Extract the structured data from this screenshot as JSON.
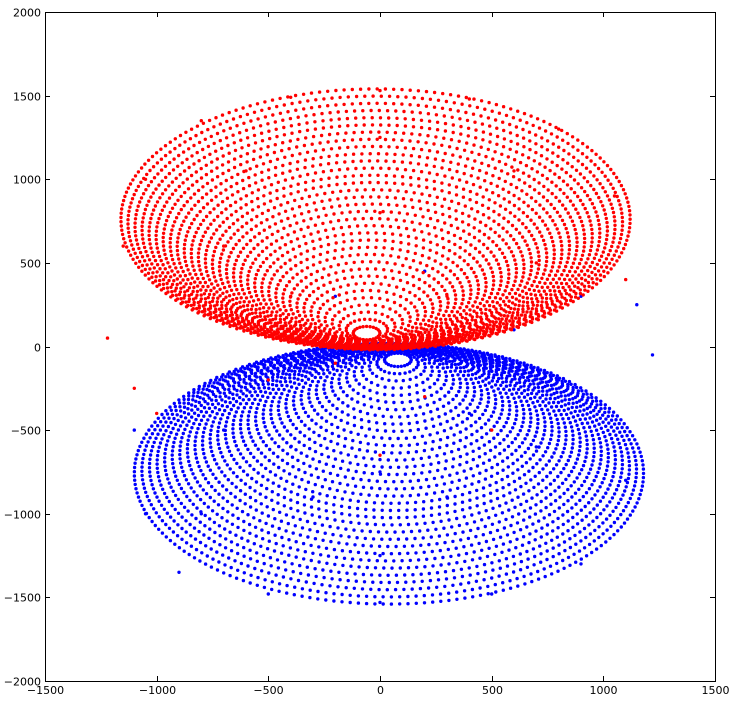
{
  "chart_data": {
    "type": "scatter",
    "title": "",
    "xlabel": "",
    "ylabel": "",
    "xlim": [
      -1500,
      1500
    ],
    "ylim": [
      -2000,
      2000
    ],
    "xticks": [
      -1500,
      -1000,
      -500,
      0,
      500,
      1000,
      1500
    ],
    "yticks": [
      -2000,
      -1500,
      -1000,
      -500,
      0,
      500,
      1000,
      1500,
      2000
    ],
    "xtick_labels": [
      "−1500",
      "−1000",
      "−500",
      "0",
      "500",
      "1000",
      "1500"
    ],
    "ytick_labels": [
      "−2000",
      "−1500",
      "−1000",
      "−500",
      "0",
      "500",
      "1000",
      "1500",
      "2000"
    ],
    "grid": false,
    "legend": "none",
    "series": [
      {
        "color": "#0000ff",
        "description_of_shape": "nested elliptical rings",
        "points_sample": [
          [
            -1100,
            -500
          ],
          [
            -1050,
            -1000
          ],
          [
            -900,
            -1350
          ],
          [
            -500,
            -1480
          ],
          [
            0,
            -1530
          ],
          [
            500,
            -1480
          ],
          [
            900,
            -1300
          ],
          [
            1100,
            -800
          ],
          [
            1220,
            -50
          ],
          [
            1150,
            250
          ],
          [
            900,
            300
          ],
          [
            0,
            -1250
          ],
          [
            -800,
            -1000
          ],
          [
            -300,
            -900
          ],
          [
            300,
            -900
          ],
          [
            700,
            -600
          ],
          [
            -700,
            -500
          ],
          [
            0,
            -750
          ],
          [
            400,
            -400
          ],
          [
            -400,
            -600
          ],
          [
            0,
            -50
          ],
          [
            200,
            450
          ],
          [
            -200,
            300
          ],
          [
            600,
            100
          ],
          [
            800,
            -200
          ]
        ]
      },
      {
        "color": "#ff0000",
        "description_of_shape": "nested elliptical rings",
        "points_sample": [
          [
            -1220,
            50
          ],
          [
            -1150,
            600
          ],
          [
            -1050,
            1000
          ],
          [
            -800,
            1350
          ],
          [
            -400,
            1490
          ],
          [
            0,
            1530
          ],
          [
            400,
            1480
          ],
          [
            800,
            1300
          ],
          [
            1050,
            900
          ],
          [
            1100,
            400
          ],
          [
            -1100,
            -250
          ],
          [
            -1000,
            -400
          ],
          [
            0,
            1250
          ],
          [
            -600,
            1050
          ],
          [
            600,
            1050
          ],
          [
            -700,
            600
          ],
          [
            700,
            500
          ],
          [
            0,
            800
          ],
          [
            -400,
            300
          ],
          [
            300,
            300
          ],
          [
            -500,
            -200
          ],
          [
            200,
            -300
          ],
          [
            500,
            -500
          ],
          [
            0,
            -650
          ],
          [
            -200,
            -100
          ]
        ]
      }
    ]
  }
}
